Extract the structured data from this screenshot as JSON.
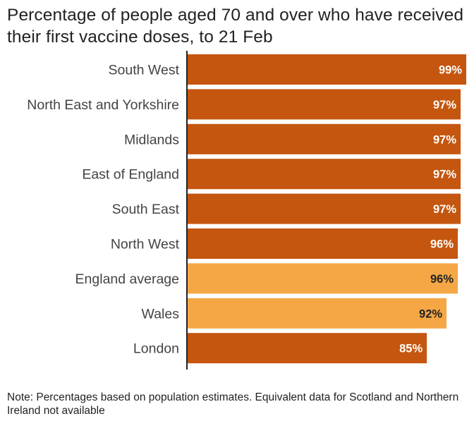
{
  "title": "Percentage of people aged 70 and over who have received their first vaccine doses, to 21 Feb",
  "note": "Note: Percentages based on population estimates. Equivalent data for Scotland and Northern Ireland not available",
  "colors": {
    "region": "#c5560f",
    "highlight": "#f5a746",
    "label_on_dark": "#ffffff",
    "label_on_light": "#222222",
    "axis": "#222222",
    "text": "#444444"
  },
  "chart_data": {
    "type": "bar",
    "orientation": "horizontal",
    "categories": [
      "South West",
      "North East and Yorkshire",
      "Midlands",
      "East of England",
      "South East",
      "North West",
      "England average",
      "Wales",
      "London"
    ],
    "values": [
      99,
      97,
      97,
      97,
      97,
      96,
      96,
      92,
      85
    ],
    "value_labels": [
      "99%",
      "97%",
      "97%",
      "97%",
      "97%",
      "96%",
      "96%",
      "92%",
      "85%"
    ],
    "highlighted": [
      false,
      false,
      false,
      false,
      false,
      false,
      true,
      true,
      false
    ],
    "title": "Percentage of people aged 70 and over who have received their first vaccine doses, to 21 Feb",
    "xlabel": "",
    "ylabel": "",
    "xlim": [
      0,
      99
    ],
    "grid": false,
    "legend": "none"
  }
}
